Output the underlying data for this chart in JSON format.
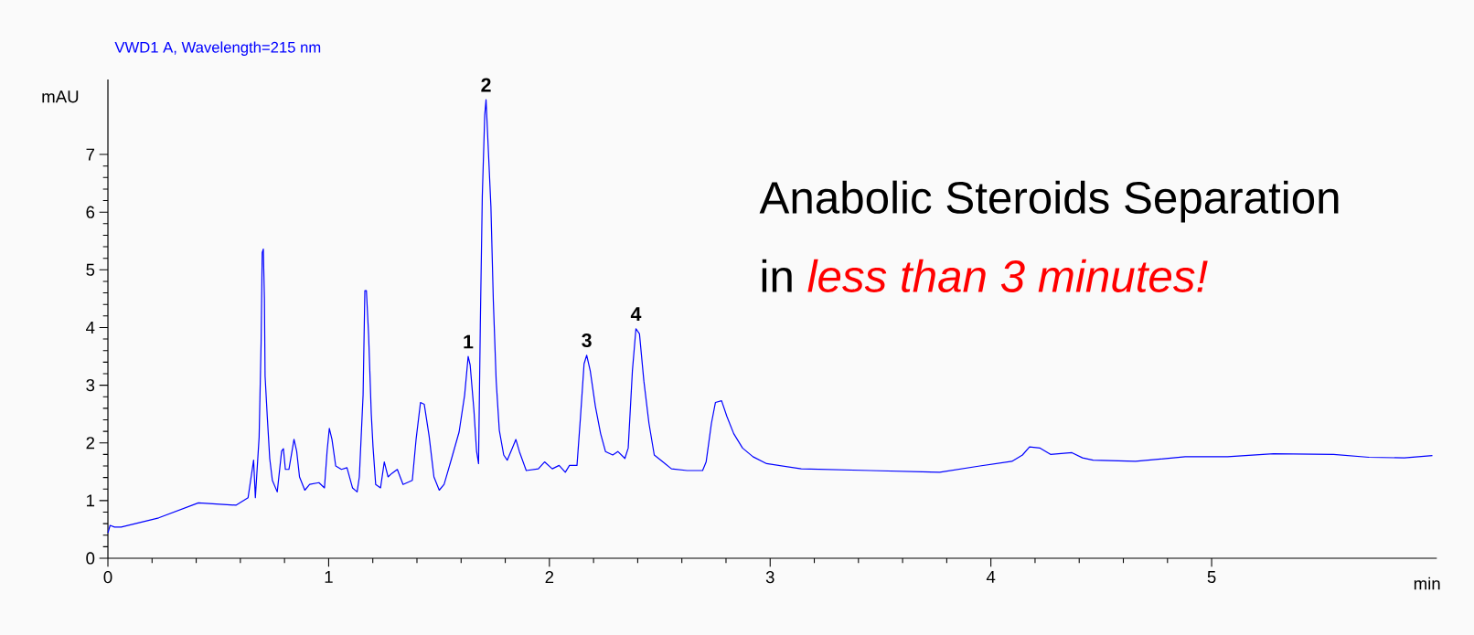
{
  "chart_data": {
    "type": "line",
    "title": "VWD1 A, Wavelength=215 nm",
    "ylabel": "mAU",
    "xlabel": "min",
    "annotations": [
      {
        "text": "1",
        "x": 1.632,
        "y": 3.5
      },
      {
        "text": "2",
        "x": 1.713,
        "y": 7.95
      },
      {
        "text": "3",
        "x": 2.169,
        "y": 3.52
      },
      {
        "text": "4",
        "x": 2.392,
        "y": 3.98
      },
      "Anabolic Steroids Separation",
      "in",
      "less than 3 minutes!"
    ],
    "xlim": [
      0,
      6.02
    ],
    "ylim": [
      0,
      8.3
    ],
    "xticks": [
      0,
      1,
      2,
      3,
      4,
      5
    ],
    "yticks": [
      0,
      1,
      2,
      3,
      4,
      5,
      6,
      7
    ],
    "marker": "none",
    "series": [
      {
        "color": "#0000ff",
        "x": [
          0,
          0.01,
          0.03,
          0.06,
          0.23,
          0.41,
          0.58,
          0.635,
          0.66,
          0.668,
          0.685,
          0.694,
          0.699,
          0.704,
          0.709,
          0.712,
          0.722,
          0.733,
          0.745,
          0.767,
          0.787,
          0.795,
          0.804,
          0.82,
          0.843,
          0.855,
          0.868,
          0.892,
          0.914,
          0.956,
          0.981,
          0.993,
          1.003,
          1.015,
          1.032,
          1.058,
          1.083,
          1.108,
          1.129,
          1.139,
          1.156,
          1.164,
          1.171,
          1.181,
          1.193,
          1.201,
          1.213,
          1.235,
          1.252,
          1.269,
          1.286,
          1.311,
          1.337,
          1.379,
          1.396,
          1.416,
          1.433,
          1.455,
          1.477,
          1.501,
          1.523,
          1.557,
          1.591,
          1.616,
          1.632,
          1.641,
          1.658,
          1.67,
          1.679,
          1.687,
          1.696,
          1.707,
          1.713,
          1.722,
          1.735,
          1.746,
          1.759,
          1.773,
          1.793,
          1.809,
          1.832,
          1.848,
          1.864,
          1.895,
          1.95,
          1.978,
          2.013,
          2.044,
          2.072,
          2.091,
          2.125,
          2.141,
          2.157,
          2.169,
          2.185,
          2.208,
          2.232,
          2.254,
          2.287,
          2.31,
          2.342,
          2.357,
          2.376,
          2.392,
          2.408,
          2.428,
          2.451,
          2.475,
          2.514,
          2.553,
          2.624,
          2.694,
          2.71,
          2.734,
          2.752,
          2.78,
          2.804,
          2.835,
          2.875,
          2.922,
          2.984,
          3.141,
          3.455,
          3.768,
          3.95,
          4.095,
          4.143,
          4.175,
          4.223,
          4.27,
          4.367,
          4.415,
          4.463,
          4.655,
          4.88,
          5.072,
          5.28,
          5.553,
          5.713,
          5.873,
          6.0
        ],
        "values": [
          0.44,
          0.57,
          0.54,
          0.54,
          0.7,
          0.96,
          0.92,
          1.05,
          1.7,
          1.05,
          2.1,
          3.74,
          5.3,
          5.36,
          4.5,
          3.16,
          2.45,
          1.73,
          1.35,
          1.15,
          1.86,
          1.9,
          1.54,
          1.54,
          2.06,
          1.86,
          1.41,
          1.18,
          1.28,
          1.31,
          1.22,
          1.86,
          2.25,
          2.06,
          1.6,
          1.54,
          1.57,
          1.22,
          1.15,
          1.41,
          2.83,
          4.64,
          4.64,
          3.87,
          2.51,
          1.93,
          1.28,
          1.22,
          1.67,
          1.41,
          1.47,
          1.54,
          1.28,
          1.35,
          2.06,
          2.7,
          2.67,
          2.12,
          1.41,
          1.18,
          1.28,
          1.73,
          2.19,
          2.83,
          3.5,
          3.35,
          2.57,
          1.86,
          1.64,
          4.04,
          6.28,
          7.68,
          7.95,
          7.19,
          6.1,
          4.46,
          3.07,
          2.22,
          1.79,
          1.7,
          1.91,
          2.06,
          1.85,
          1.52,
          1.55,
          1.67,
          1.55,
          1.61,
          1.49,
          1.61,
          1.61,
          2.46,
          3.37,
          3.52,
          3.25,
          2.64,
          2.16,
          1.85,
          1.79,
          1.85,
          1.73,
          1.91,
          3.25,
          3.98,
          3.89,
          3.07,
          2.34,
          1.79,
          1.67,
          1.55,
          1.52,
          1.52,
          1.67,
          2.34,
          2.7,
          2.73,
          2.46,
          2.16,
          1.91,
          1.76,
          1.64,
          1.55,
          1.52,
          1.49,
          1.6,
          1.68,
          1.79,
          1.93,
          1.91,
          1.8,
          1.83,
          1.74,
          1.7,
          1.68,
          1.76,
          1.76,
          1.81,
          1.8,
          1.75,
          1.74,
          1.78
        ]
      }
    ]
  }
}
